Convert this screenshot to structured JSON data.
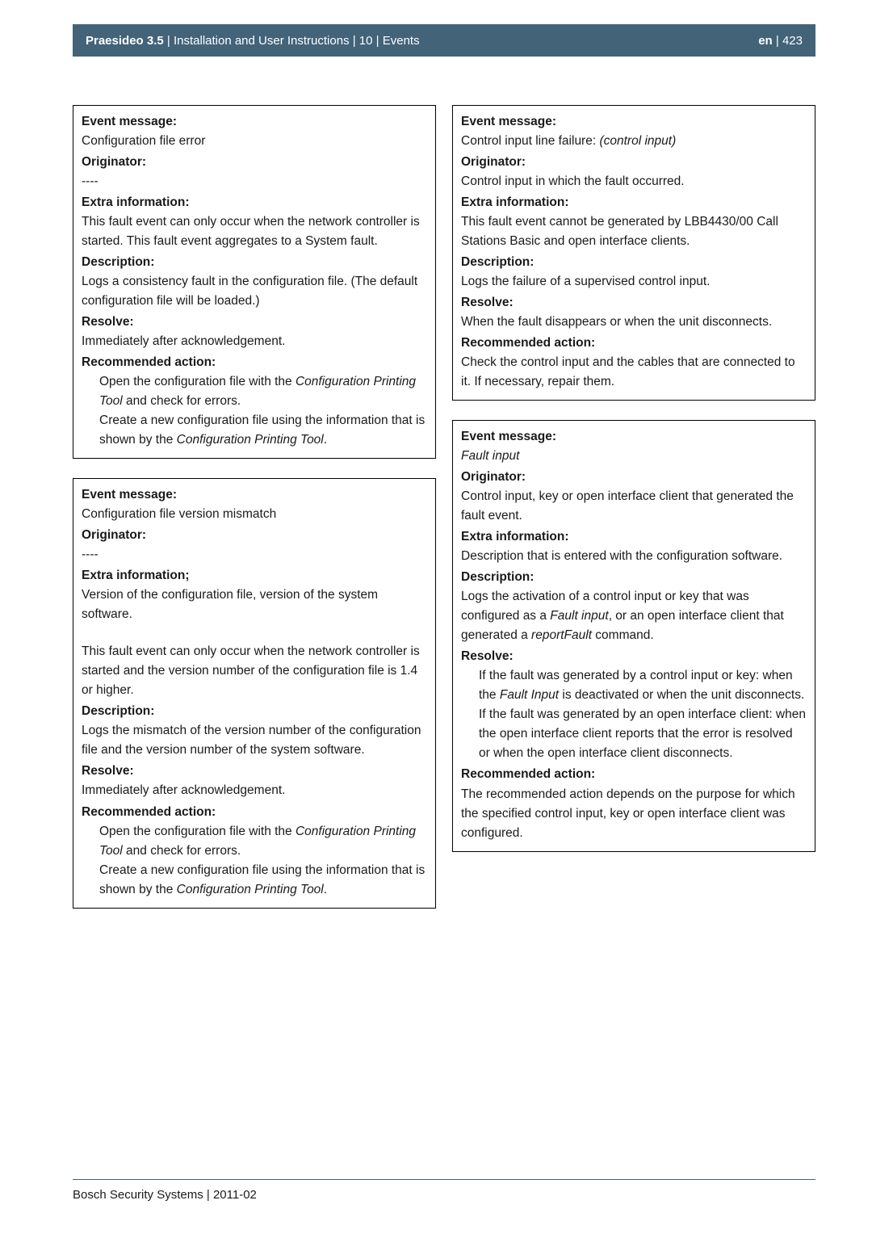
{
  "header": {
    "left_bold": "Praesideo 3.5",
    "left_rest": " | Installation and User Instructions | 10 | Events",
    "right_bold": "en",
    "right_rest": " | 423"
  },
  "left_boxes": [
    {
      "sections": [
        {
          "label": "Event message:",
          "body": "Configuration file error"
        },
        {
          "label": "Originator:",
          "body": "----"
        },
        {
          "label": "Extra information:",
          "body": "This fault event can only occur when the network controller is started. This fault event aggregates to a System fault."
        },
        {
          "label": "Description:",
          "body": "Logs a consistency fault in the configuration file. (The default configuration file will be loaded.)"
        },
        {
          "label": "Resolve:",
          "body": "Immediately after acknowledgement."
        },
        {
          "label": "Recommended action:",
          "bullets": [
            {
              "pre": "Open the configuration file with the ",
              "em": "Configuration Printing Tool",
              "post": " and check for errors."
            },
            {
              "pre": "Create a new configuration file using the information that is shown by the ",
              "em": "Configuration Printing Tool",
              "post": "."
            }
          ]
        }
      ]
    },
    {
      "sections": [
        {
          "label": "Event message:",
          "body": "Configuration file version mismatch"
        },
        {
          "label": "Originator:",
          "body": "----"
        },
        {
          "label": "Extra information;",
          "body": "Version of the configuration file, version of the system software.",
          "gap_after": true,
          "body2": "This fault event can only occur when the network controller is started and the version number of the configuration file is 1.4 or higher."
        },
        {
          "label": "Description:",
          "body": "Logs the mismatch of the version number of the configuration file and the version number of the system software."
        },
        {
          "label": "Resolve:",
          "body": "Immediately after acknowledgement."
        },
        {
          "label": "Recommended action:",
          "bullets": [
            {
              "pre": "Open the configuration file with the ",
              "em": "Configuration Printing Tool",
              "post": " and check for errors."
            },
            {
              "pre": "Create a new configuration file using the information that is shown by the ",
              "em": "Configuration Printing Tool",
              "post": "."
            }
          ]
        }
      ]
    }
  ],
  "right_boxes": [
    {
      "sections": [
        {
          "label": "Event message:",
          "body_em_parts": {
            "pre": "Control input line failure:",
            "em": " (control input)"
          }
        },
        {
          "label": "Originator:",
          "body": "Control input in which the fault occurred."
        },
        {
          "label": "Extra information:",
          "body": "This fault event cannot be generated by LBB4430/00 Call Stations Basic and open interface clients."
        },
        {
          "label": "Description:",
          "body": "Logs the failure of a supervised control input."
        },
        {
          "label": "Resolve:",
          "body": "When the fault disappears or when the unit disconnects."
        },
        {
          "label": "Recommended action:",
          "body": "Check the control input and the cables that are connected to it. If necessary, repair them."
        }
      ]
    },
    {
      "sections": [
        {
          "label": "Event message:",
          "body_em": "Fault input"
        },
        {
          "label": "Originator:",
          "body": "Control input, key or open interface client that generated the fault event."
        },
        {
          "label": "Extra information:",
          "body": "Description that is entered with the configuration software."
        },
        {
          "label": "Description:",
          "body_parts": [
            {
              "t": "Logs the activation of a control input or key that was configured as a "
            },
            {
              "em": "Fault input"
            },
            {
              "t": ", or an open interface client that generated a "
            },
            {
              "em": "reportFault"
            },
            {
              "t": " command."
            }
          ]
        },
        {
          "label": "Resolve:",
          "bullets": [
            {
              "pre": "If the fault was generated by a control input or key: when the ",
              "em": "Fault Input",
              "post": " is deactivated or when the unit disconnects."
            },
            {
              "pre": "If the fault was generated by an open interface client: when the open interface client reports that the error is resolved or when the open interface client disconnects.",
              "em": "",
              "post": ""
            }
          ]
        },
        {
          "label": "Recommended action:",
          "body": "The recommended action depends on the purpose for which the specified control input, key or open interface client was configured."
        }
      ]
    }
  ],
  "footer": "Bosch Security Systems | 2011-02",
  "colors": {
    "header_bg": "#426378",
    "text": "#1a1a1a"
  }
}
